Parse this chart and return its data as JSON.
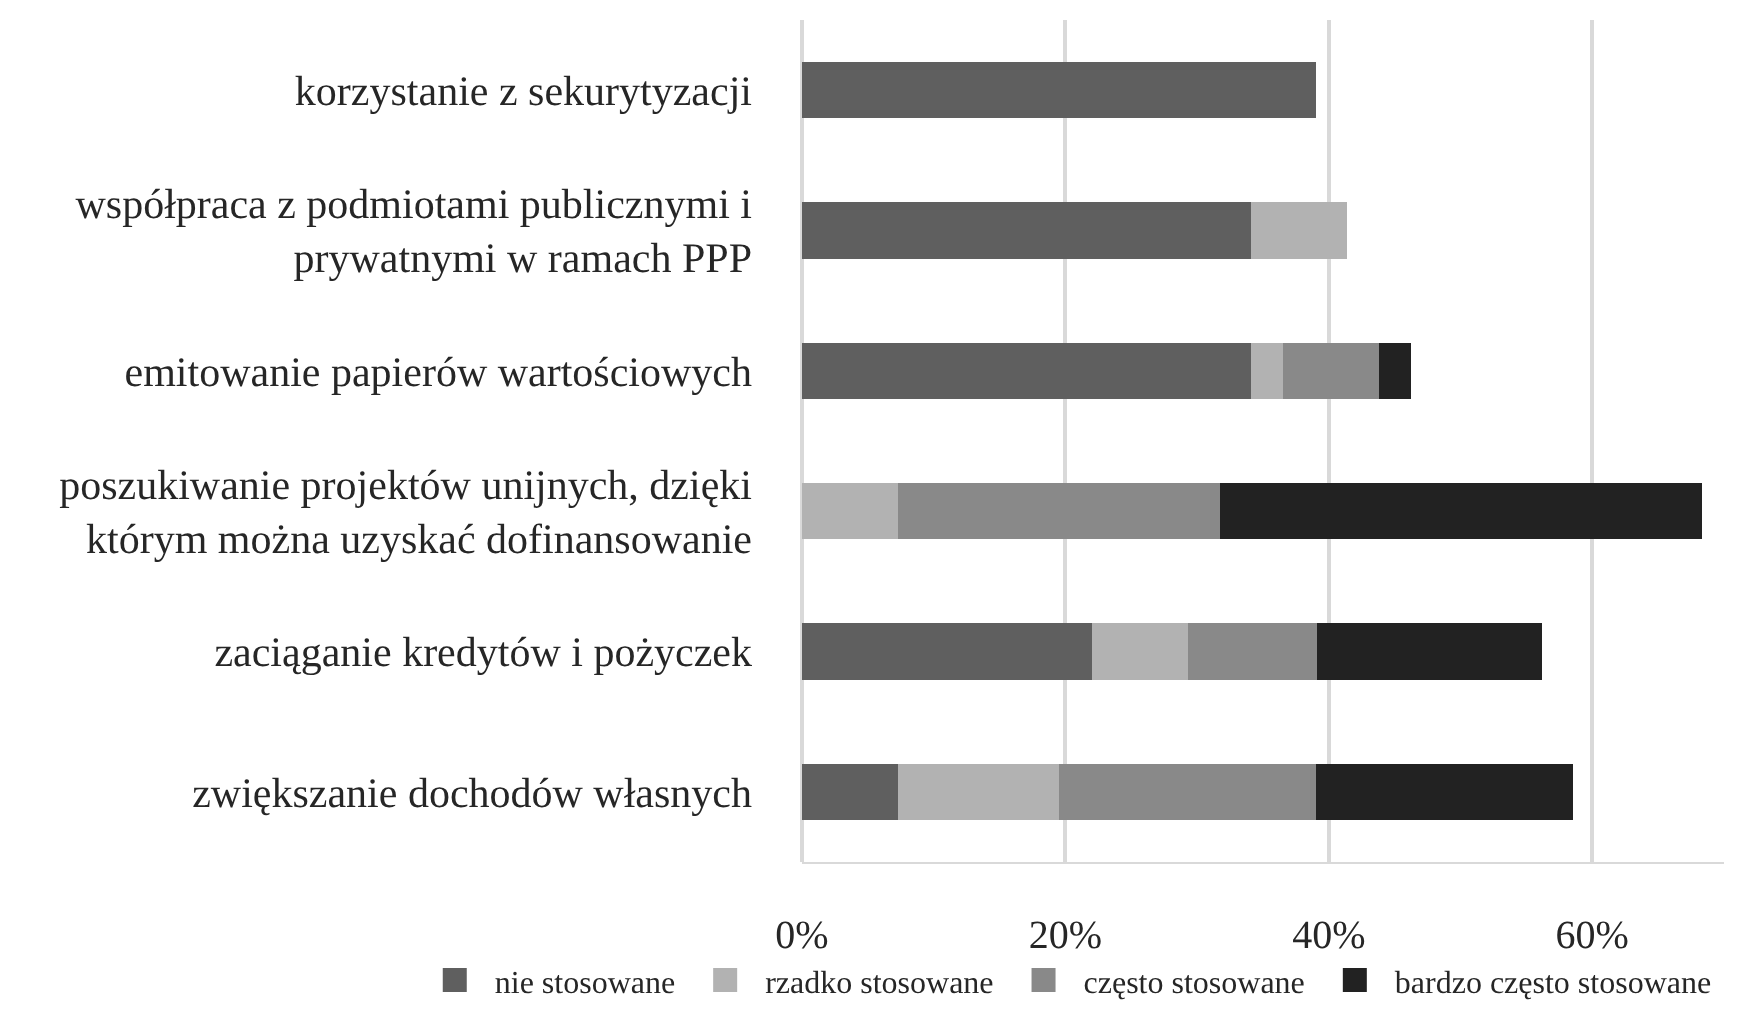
{
  "chart_data": {
    "type": "bar",
    "orientation": "horizontal",
    "stacked": true,
    "categories": [
      "korzystanie z sekurytyzacji",
      "współpraca z podmiotami publicznymi i prywatnymi w ramach PPP",
      "emitowanie papierów wartościowych",
      "poszukiwanie projektów unijnych, dzięki którym można uzyskać dofinansowanie",
      "zaciąganie kredytów i pożyczek",
      "zwiększanie dochodów własnych"
    ],
    "series": [
      {
        "name": "nie stosowane",
        "color": "#5f5f5f",
        "values": [
          39.0,
          34.1,
          34.1,
          0,
          22.0,
          7.3
        ]
      },
      {
        "name": "rzadko stosowane",
        "color": "#b2b2b2",
        "values": [
          0,
          7.3,
          2.4,
          7.3,
          7.3,
          12.2
        ]
      },
      {
        "name": "często stosowane",
        "color": "#898989",
        "values": [
          0,
          0,
          7.3,
          24.4,
          9.8,
          19.5
        ]
      },
      {
        "name": "bardzo często stosowane",
        "color": "#222222",
        "values": [
          0,
          0,
          2.4,
          36.6,
          17.1,
          19.5
        ]
      }
    ],
    "xlim": [
      0,
      70
    ],
    "xticks": [
      {
        "value": 0,
        "label": "0%"
      },
      {
        "value": 20,
        "label": "20%"
      },
      {
        "value": 40,
        "label": "40%"
      },
      {
        "value": 60,
        "label": "60%"
      }
    ],
    "grid": "x",
    "legend": "bottom"
  }
}
